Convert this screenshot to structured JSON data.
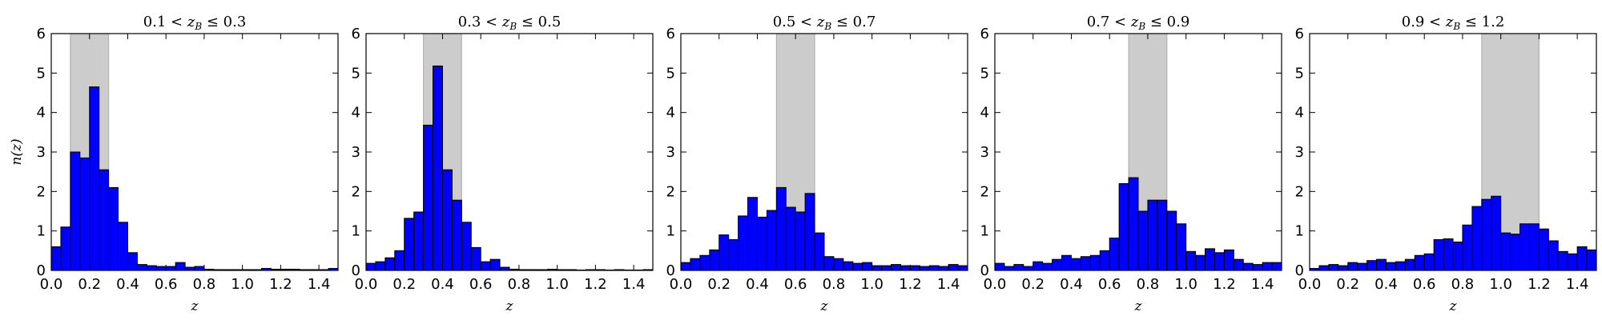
{
  "chart_data": [
    {
      "type": "bar",
      "title": "0.1 < z_B ≤ 0.3",
      "title_parts": {
        "pre": "0.1 < ",
        "var": "z",
        "sub": "B",
        "post": " ≤ 0.3"
      },
      "xlabel": "z",
      "ylabel": "n(z)",
      "xlim": [
        0,
        1.5
      ],
      "ylim": [
        0,
        6
      ],
      "xticks": [
        "0.0",
        "0.2",
        "0.4",
        "0.6",
        "0.8",
        "1.0",
        "1.2",
        "1.4"
      ],
      "yticks": [
        "0",
        "1",
        "2",
        "3",
        "4",
        "5",
        "6"
      ],
      "highlight_range": [
        0.1,
        0.3
      ],
      "bin_width": 0.05,
      "bin_starts": [
        0.0,
        0.05,
        0.1,
        0.15,
        0.2,
        0.25,
        0.3,
        0.35,
        0.4,
        0.45,
        0.5,
        0.55,
        0.6,
        0.65,
        0.7,
        0.75,
        0.8,
        0.85,
        0.9,
        0.95,
        1.0,
        1.05,
        1.1,
        1.15,
        1.2,
        1.25,
        1.3,
        1.35,
        1.4,
        1.45
      ],
      "values": [
        0.6,
        1.1,
        3.0,
        2.85,
        4.65,
        2.55,
        2.1,
        1.22,
        0.45,
        0.15,
        0.12,
        0.1,
        0.1,
        0.2,
        0.08,
        0.1,
        0.03,
        0.02,
        0.02,
        0.02,
        0.02,
        0.02,
        0.05,
        0.03,
        0.03,
        0.03,
        0.02,
        0.02,
        0.02,
        0.05
      ],
      "colors": {
        "bar": "#0000ff",
        "highlight": "#cccccc",
        "edge": "#000000"
      }
    },
    {
      "type": "bar",
      "title": "0.3 < z_B ≤ 0.5",
      "title_parts": {
        "pre": "0.3 < ",
        "var": "z",
        "sub": "B",
        "post": " ≤ 0.5"
      },
      "xlabel": "z",
      "ylabel": "",
      "xlim": [
        0,
        1.5
      ],
      "ylim": [
        0,
        6
      ],
      "xticks": [
        "0.0",
        "0.2",
        "0.4",
        "0.6",
        "0.8",
        "1.0",
        "1.2",
        "1.4"
      ],
      "yticks": [
        "0",
        "1",
        "2",
        "3",
        "4",
        "5",
        "6"
      ],
      "highlight_range": [
        0.3,
        0.5
      ],
      "bin_width": 0.05,
      "bin_starts": [
        0.0,
        0.05,
        0.1,
        0.15,
        0.2,
        0.25,
        0.3,
        0.35,
        0.4,
        0.45,
        0.5,
        0.55,
        0.6,
        0.65,
        0.7,
        0.75,
        0.8,
        0.85,
        0.9,
        0.95,
        1.0,
        1.05,
        1.1,
        1.15,
        1.2,
        1.25,
        1.3,
        1.35,
        1.4,
        1.45
      ],
      "values": [
        0.18,
        0.22,
        0.32,
        0.5,
        1.32,
        1.48,
        3.68,
        5.18,
        2.55,
        1.78,
        1.22,
        0.58,
        0.22,
        0.28,
        0.08,
        0.03,
        0.02,
        0.02,
        0.02,
        0.03,
        0.02,
        0.02,
        0.01,
        0.02,
        0.02,
        0.01,
        0.02,
        0.01,
        0.01,
        0.02
      ],
      "colors": {
        "bar": "#0000ff",
        "highlight": "#cccccc",
        "edge": "#000000"
      }
    },
    {
      "type": "bar",
      "title": "0.5 < z_B ≤ 0.7",
      "title_parts": {
        "pre": "0.5 < ",
        "var": "z",
        "sub": "B",
        "post": " ≤ 0.7"
      },
      "xlabel": "z",
      "ylabel": "",
      "xlim": [
        0,
        1.5
      ],
      "ylim": [
        0,
        6
      ],
      "xticks": [
        "0.0",
        "0.2",
        "0.4",
        "0.6",
        "0.8",
        "1.0",
        "1.2",
        "1.4"
      ],
      "yticks": [
        "0",
        "1",
        "2",
        "3",
        "4",
        "5",
        "6"
      ],
      "highlight_range": [
        0.5,
        0.7
      ],
      "bin_width": 0.05,
      "bin_starts": [
        0.0,
        0.05,
        0.1,
        0.15,
        0.2,
        0.25,
        0.3,
        0.35,
        0.4,
        0.45,
        0.5,
        0.55,
        0.6,
        0.65,
        0.7,
        0.75,
        0.8,
        0.85,
        0.9,
        0.95,
        1.0,
        1.05,
        1.1,
        1.15,
        1.2,
        1.25,
        1.3,
        1.35,
        1.4,
        1.45
      ],
      "values": [
        0.2,
        0.3,
        0.38,
        0.52,
        0.9,
        0.78,
        1.38,
        1.85,
        1.35,
        1.52,
        2.1,
        1.6,
        1.48,
        1.95,
        0.95,
        0.35,
        0.3,
        0.22,
        0.18,
        0.2,
        0.12,
        0.12,
        0.15,
        0.12,
        0.12,
        0.1,
        0.12,
        0.1,
        0.15,
        0.12
      ],
      "colors": {
        "bar": "#0000ff",
        "highlight": "#cccccc",
        "edge": "#000000"
      }
    },
    {
      "type": "bar",
      "title": "0.7 < z_B ≤ 0.9",
      "title_parts": {
        "pre": "0.7 < ",
        "var": "z",
        "sub": "B",
        "post": " ≤ 0.9"
      },
      "xlabel": "z",
      "ylabel": "",
      "xlim": [
        0,
        1.5
      ],
      "ylim": [
        0,
        6
      ],
      "xticks": [
        "0.0",
        "0.2",
        "0.4",
        "0.6",
        "0.8",
        "1.0",
        "1.2",
        "1.4"
      ],
      "yticks": [
        "0",
        "1",
        "2",
        "3",
        "4",
        "5",
        "6"
      ],
      "highlight_range": [
        0.7,
        0.9
      ],
      "bin_width": 0.05,
      "bin_starts": [
        0.0,
        0.05,
        0.1,
        0.15,
        0.2,
        0.25,
        0.3,
        0.35,
        0.4,
        0.45,
        0.5,
        0.55,
        0.6,
        0.65,
        0.7,
        0.75,
        0.8,
        0.85,
        0.9,
        0.95,
        1.0,
        1.05,
        1.1,
        1.15,
        1.2,
        1.25,
        1.3,
        1.35,
        1.4,
        1.45
      ],
      "values": [
        0.18,
        0.1,
        0.15,
        0.1,
        0.22,
        0.18,
        0.28,
        0.38,
        0.3,
        0.35,
        0.38,
        0.5,
        0.82,
        2.2,
        2.35,
        1.5,
        1.78,
        1.78,
        1.5,
        1.18,
        0.48,
        0.38,
        0.55,
        0.45,
        0.52,
        0.28,
        0.18,
        0.15,
        0.2,
        0.2
      ],
      "colors": {
        "bar": "#0000ff",
        "highlight": "#cccccc",
        "edge": "#000000"
      }
    },
    {
      "type": "bar",
      "title": "0.9 < z_B ≤ 1.2",
      "title_parts": {
        "pre": "0.9 < ",
        "var": "z",
        "sub": "B",
        "post": " ≤ 1.2"
      },
      "xlabel": "z",
      "ylabel": "",
      "xlim": [
        0,
        1.5
      ],
      "ylim": [
        0,
        6
      ],
      "xticks": [
        "0.0",
        "0.2",
        "0.4",
        "0.6",
        "0.8",
        "1.0",
        "1.2",
        "1.4"
      ],
      "yticks": [
        "0",
        "1",
        "2",
        "3",
        "4",
        "5",
        "6"
      ],
      "highlight_range": [
        0.9,
        1.2
      ],
      "bin_width": 0.05,
      "bin_starts": [
        0.0,
        0.05,
        0.1,
        0.15,
        0.2,
        0.25,
        0.3,
        0.35,
        0.4,
        0.45,
        0.5,
        0.55,
        0.6,
        0.65,
        0.7,
        0.75,
        0.8,
        0.85,
        0.9,
        0.95,
        1.0,
        1.05,
        1.1,
        1.15,
        1.2,
        1.25,
        1.3,
        1.35,
        1.4,
        1.45
      ],
      "values": [
        0.05,
        0.12,
        0.15,
        0.12,
        0.2,
        0.18,
        0.25,
        0.28,
        0.2,
        0.22,
        0.28,
        0.38,
        0.42,
        0.78,
        0.8,
        0.72,
        1.15,
        1.62,
        1.8,
        1.88,
        0.95,
        0.92,
        1.18,
        1.18,
        1.05,
        0.75,
        0.48,
        0.42,
        0.6,
        0.52
      ],
      "colors": {
        "bar": "#0000ff",
        "highlight": "#cccccc",
        "edge": "#000000"
      }
    }
  ]
}
